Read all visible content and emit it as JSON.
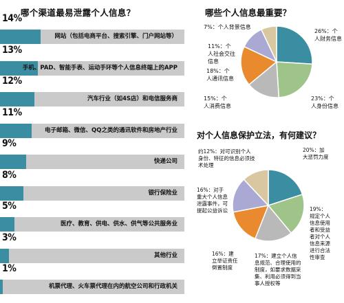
{
  "bar_title": "哪个渠道最易泄露个人信息？",
  "pie1_title": "哪些个人信息最重要？",
  "pie2_title": "对个人信息保护立法，有何建议？",
  "colors": {
    "bar_fill": "#3b8ea1",
    "bar_track": "#cacaca",
    "pie_blue": "#3b8ea1",
    "pie_green": "#9fc489",
    "pie_orange": "#ea8a2e",
    "pie_purple": "#a9a9d4",
    "pie_tan": "#d8c7a0",
    "pie_gray": "#b9b9b9"
  },
  "chart_data": [
    {
      "type": "bar",
      "orientation": "horizontal",
      "title": "哪个渠道最易泄露个人信息？",
      "xlim": [
        0,
        100
      ],
      "categories": [
        "网站（包括电商平台、搜索引擎、门户网站等）",
        "手机、PAD、智能手表、运动手环等个人信息终端上的APP",
        "汽车行业（如4S店）和电信服务商",
        "电子邮箱、微信、QQ之类的通讯软件和房地产行业",
        "快递公司",
        "银行保险业",
        "医疗、教育、供电、供水、供气等公共服务业",
        "其他行业",
        "机票代理、火车票代理在内的航空公司和行政机关"
      ],
      "value_labels": [
        "14%",
        "13%",
        "12%",
        "11%",
        "9%",
        "8%",
        "5%",
        "3%",
        "1%"
      ],
      "values": [
        14,
        13,
        12,
        11,
        9,
        8,
        5,
        3,
        1
      ]
    },
    {
      "type": "pie",
      "title": "哪些个人信息最重要？",
      "slices": [
        {
          "label": "26%：个人财务信息",
          "value": 26,
          "color": "#3b8ea1"
        },
        {
          "label": "23%：个人身份信息",
          "value": 23,
          "color": "#9fc489"
        },
        {
          "label": "15%：个人消费信息",
          "value": 15,
          "color": "#b9b9b9"
        },
        {
          "label": "18%：个人通讯信息",
          "value": 18,
          "color": "#ea8a2e"
        },
        {
          "label": "11%：个人社会交往信息",
          "value": 11,
          "color": "#a9a9d4"
        },
        {
          "label": "7%：个人背景信息",
          "value": 7,
          "color": "#d8c7a0"
        }
      ]
    },
    {
      "type": "pie",
      "title": "对个人信息保护立法，有何建议？",
      "slices": [
        {
          "label": "20%：加大惩罚力度",
          "value": 20,
          "color": "#3b8ea1"
        },
        {
          "label": "19%：规定个人信息使用者和受益者对个人信息来源进行合法性审查",
          "value": 19,
          "color": "#9fc489"
        },
        {
          "label": "17%：建立个人信息规范、合理使用的制度，如要求数据采集、利用必须得到当事人授权等",
          "value": 17,
          "color": "#b9b9b9"
        },
        {
          "label": "16%：建立举证责任倒置制度",
          "value": 16,
          "color": "#ea8a2e"
        },
        {
          "label": "16%：对于重大个人信息泄露事件，可提起公益诉讼",
          "value": 16,
          "color": "#a9a9d4"
        },
        {
          "label": "约12%：对可识别个人身份、特征的信息必须技术处理",
          "value": 12,
          "color": "#d8c7a0"
        }
      ]
    }
  ]
}
